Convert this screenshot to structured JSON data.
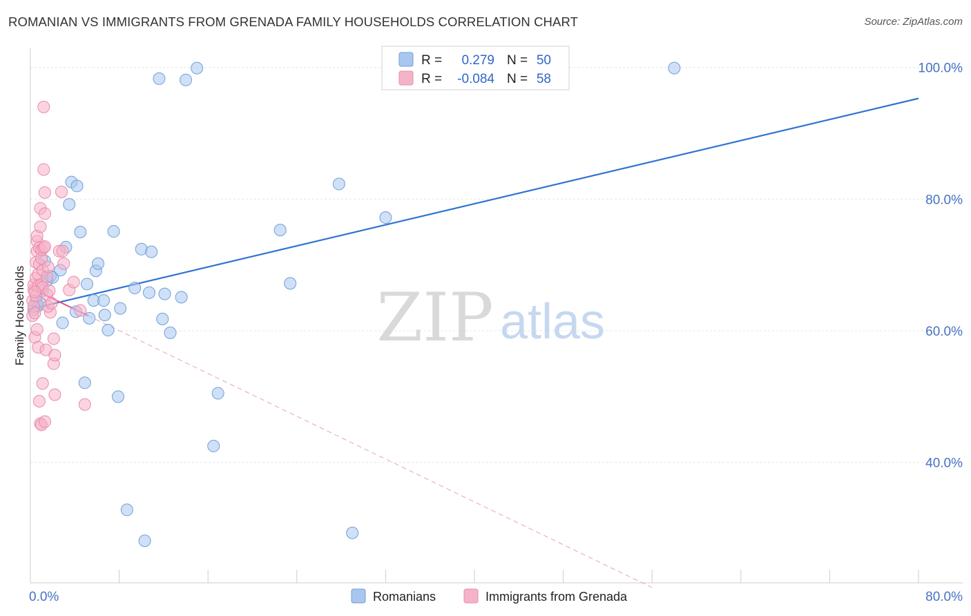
{
  "title": "ROMANIAN VS IMMIGRANTS FROM GRENADA FAMILY HOUSEHOLDS CORRELATION CHART",
  "source": "Source: ZipAtlas.com",
  "watermark": {
    "zip": "ZIP",
    "atlas": "atlas"
  },
  "legend_box": [
    {
      "r_label": "R =",
      "r_value": "0.279",
      "n_label": "N =",
      "n_value": "50",
      "color": "#a8c6f0"
    },
    {
      "r_label": "R =",
      "r_value": "-0.084",
      "n_label": "N =",
      "n_value": "58",
      "color": "#f5b3c8"
    }
  ],
  "chart_data": {
    "type": "scatter",
    "title": "ROMANIAN VS IMMIGRANTS FROM GRENADA FAMILY HOUSEHOLDS CORRELATION CHART",
    "xlabel": "",
    "ylabel": "Family Households",
    "xlim": [
      0,
      80
    ],
    "ylim": [
      20,
      102
    ],
    "x_tick_labels": [
      "0.0%",
      "80.0%"
    ],
    "y_ticks": [
      40,
      60,
      80,
      100
    ],
    "y_tick_labels": [
      "40.0%",
      "60.0%",
      "80.0%",
      "100.0%"
    ],
    "grid": true,
    "legend_position": "bottom",
    "series": [
      {
        "name": "Romanians",
        "color": "#a8c6f0",
        "stroke": "#6f9fd8",
        "trend": {
          "x": [
            0,
            80
          ],
          "y": [
            63.3,
            95.3
          ],
          "color": "#2e72d2",
          "style": "solid"
        },
        "points": [
          [
            0.3,
            63.2
          ],
          [
            0.5,
            64.6
          ],
          [
            0.7,
            63.8
          ],
          [
            0.9,
            64.2
          ],
          [
            1.1,
            66.1
          ],
          [
            1.3,
            70.6
          ],
          [
            1.5,
            67.6
          ],
          [
            1.8,
            68.3
          ],
          [
            2.0,
            68.1
          ],
          [
            2.7,
            69.2
          ],
          [
            2.9,
            61.2
          ],
          [
            3.2,
            72.7
          ],
          [
            3.5,
            79.2
          ],
          [
            3.7,
            82.6
          ],
          [
            4.2,
            82.0
          ],
          [
            4.1,
            62.9
          ],
          [
            4.5,
            75.0
          ],
          [
            4.9,
            52.1
          ],
          [
            5.1,
            67.1
          ],
          [
            5.3,
            61.9
          ],
          [
            5.7,
            64.6
          ],
          [
            5.9,
            69.1
          ],
          [
            6.1,
            70.2
          ],
          [
            6.6,
            64.6
          ],
          [
            6.7,
            62.4
          ],
          [
            7.0,
            60.1
          ],
          [
            7.5,
            75.1
          ],
          [
            7.9,
            50.0
          ],
          [
            8.1,
            63.4
          ],
          [
            8.7,
            32.8
          ],
          [
            9.4,
            66.5
          ],
          [
            10.0,
            72.4
          ],
          [
            10.3,
            28.1
          ],
          [
            10.7,
            65.8
          ],
          [
            11.6,
            98.3
          ],
          [
            11.9,
            61.8
          ],
          [
            12.1,
            65.6
          ],
          [
            12.6,
            59.7
          ],
          [
            13.6,
            65.1
          ],
          [
            14.0,
            98.1
          ],
          [
            15.0,
            99.9
          ],
          [
            16.5,
            42.5
          ],
          [
            16.9,
            50.5
          ],
          [
            22.5,
            75.3
          ],
          [
            23.4,
            67.2
          ],
          [
            27.8,
            82.3
          ],
          [
            29.0,
            29.3
          ],
          [
            32.0,
            77.2
          ],
          [
            58.0,
            99.9
          ],
          [
            10.9,
            72.0
          ]
        ]
      },
      {
        "name": "Immigrants from Grenada",
        "color": "#f5b3c8",
        "stroke": "#e98aaa",
        "trend": {
          "x": [
            0,
            5.2
          ],
          "y": [
            66.5,
            62.3
          ],
          "color": "#e05585",
          "style": "solid"
        },
        "trend_ext": {
          "x": [
            5.2,
            56
          ],
          "y": [
            62.3,
            21
          ],
          "color": "#e8a0b8",
          "style": "dashed"
        },
        "points": [
          [
            0.2,
            62.3
          ],
          [
            0.2,
            64.6
          ],
          [
            0.3,
            63.7
          ],
          [
            0.3,
            66.2
          ],
          [
            0.3,
            67.0
          ],
          [
            0.4,
            59.0
          ],
          [
            0.4,
            62.7
          ],
          [
            0.5,
            65.3
          ],
          [
            0.5,
            68.0
          ],
          [
            0.5,
            70.4
          ],
          [
            0.6,
            72.1
          ],
          [
            0.6,
            73.6
          ],
          [
            0.6,
            74.4
          ],
          [
            0.7,
            68.6
          ],
          [
            0.7,
            66.8
          ],
          [
            0.7,
            57.5
          ],
          [
            0.8,
            70.1
          ],
          [
            0.8,
            72.6
          ],
          [
            0.8,
            49.3
          ],
          [
            0.9,
            45.9
          ],
          [
            0.9,
            75.8
          ],
          [
            0.9,
            78.6
          ],
          [
            1.0,
            71.0
          ],
          [
            1.0,
            72.3
          ],
          [
            1.0,
            67.1
          ],
          [
            1.0,
            45.7
          ],
          [
            1.1,
            52.0
          ],
          [
            1.1,
            66.6
          ],
          [
            1.1,
            69.2
          ],
          [
            1.2,
            72.6
          ],
          [
            1.2,
            94.0
          ],
          [
            1.2,
            84.5
          ],
          [
            1.3,
            81.0
          ],
          [
            1.3,
            77.8
          ],
          [
            1.3,
            72.8
          ],
          [
            1.3,
            46.2
          ],
          [
            1.4,
            57.1
          ],
          [
            1.5,
            65.5
          ],
          [
            1.5,
            68.2
          ],
          [
            1.6,
            69.7
          ],
          [
            1.7,
            66.1
          ],
          [
            1.8,
            62.8
          ],
          [
            2.1,
            55.0
          ],
          [
            2.1,
            58.8
          ],
          [
            2.2,
            56.3
          ],
          [
            2.2,
            50.3
          ],
          [
            2.6,
            72.1
          ],
          [
            2.8,
            81.1
          ],
          [
            2.9,
            72.1
          ],
          [
            3.0,
            70.2
          ],
          [
            3.5,
            66.2
          ],
          [
            3.9,
            67.4
          ],
          [
            4.5,
            63.1
          ],
          [
            4.9,
            48.8
          ],
          [
            1.6,
            63.7
          ],
          [
            0.4,
            65.9
          ],
          [
            0.6,
            60.2
          ],
          [
            1.9,
            64.2
          ]
        ]
      }
    ]
  }
}
